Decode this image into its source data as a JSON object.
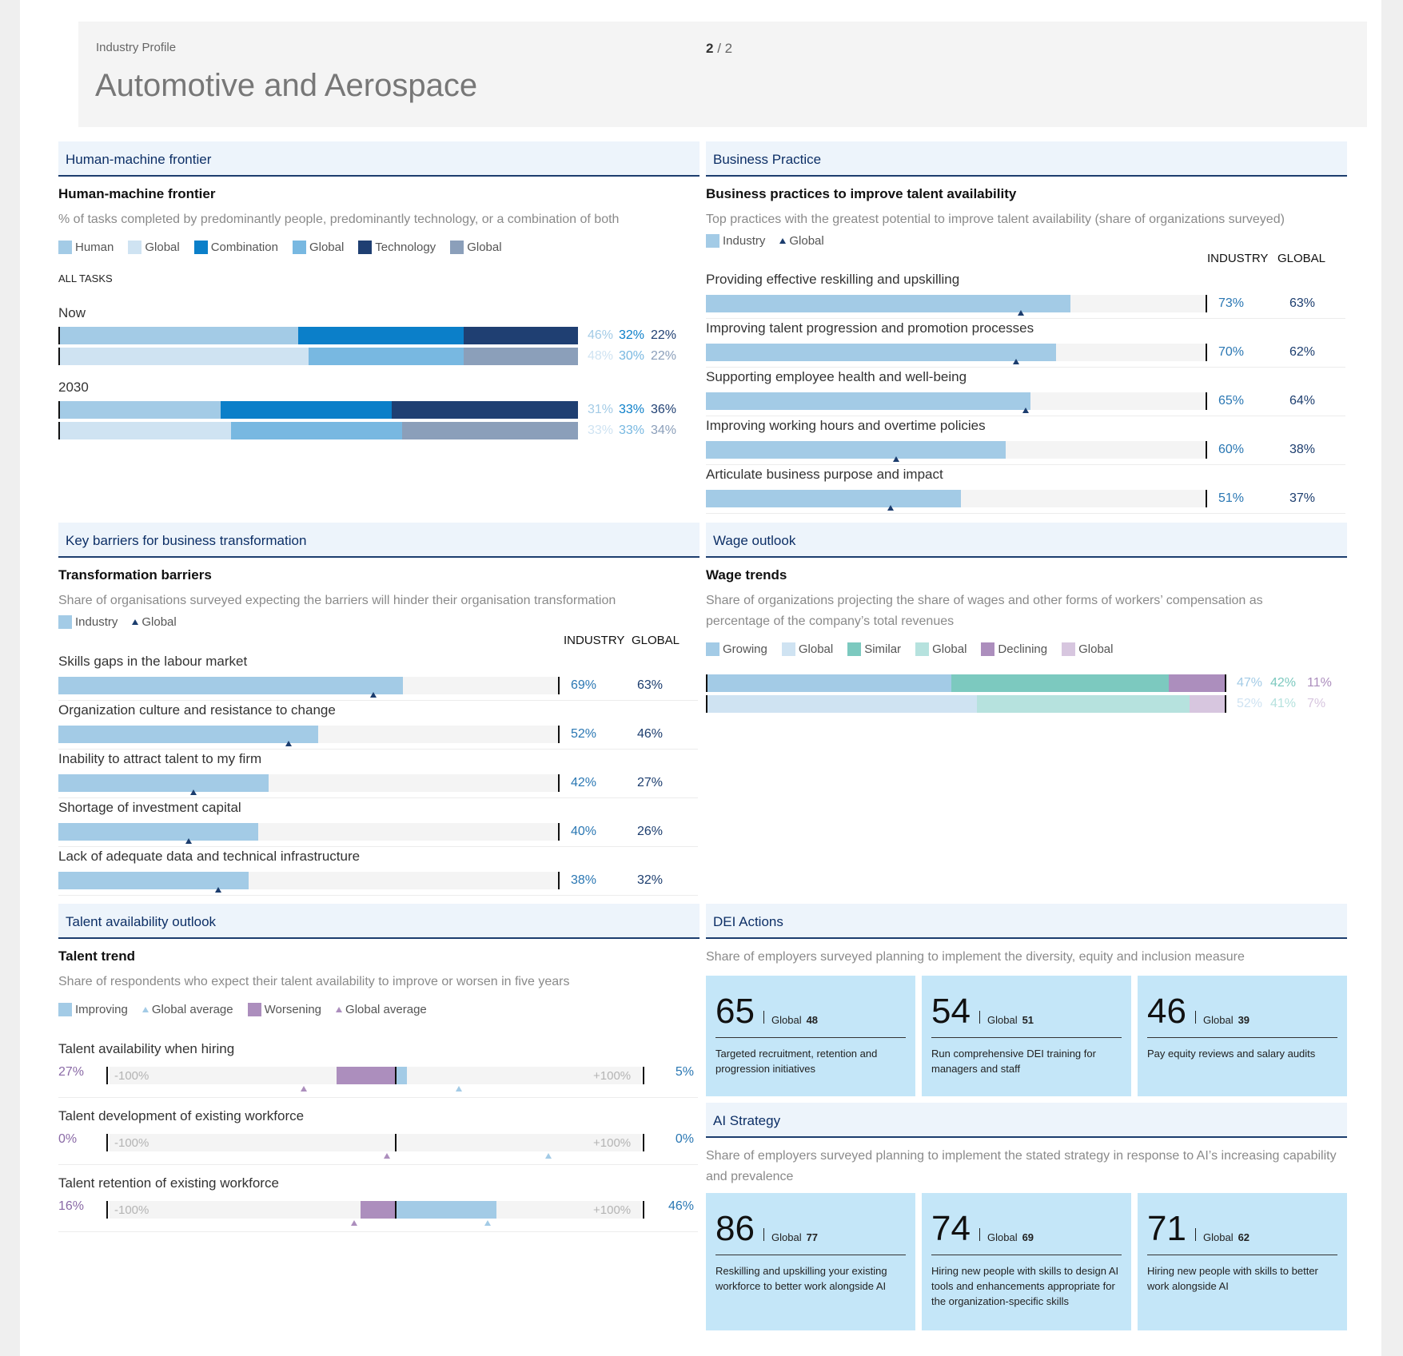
{
  "header": {
    "subtitle": "Industry Profile",
    "title": "Automotive and Aerospace",
    "page_current": "2",
    "page_sep": " / ",
    "page_total": "2"
  },
  "colors": {
    "human": "#a3cbe6",
    "human_global": "#cfe3f2",
    "combination": "#0b7fc9",
    "combination_global": "#78b8e1",
    "technology": "#1f3f72",
    "technology_global": "#8b9fba",
    "industry": "#a3cbe6",
    "growing": "#a3cbe6",
    "growing_global": "#cfe3f2",
    "similar": "#7cc9bf",
    "similar_global": "#b6e2de",
    "declining": "#ac8ebd",
    "declining_global": "#d7c6df",
    "improving": "#a3cbe6",
    "worsening": "#ac8ebd",
    "card": "#c4e6f8"
  },
  "hm": {
    "tab": "Human-machine frontier",
    "title": "Human-machine frontier",
    "desc": "% of tasks completed by predominantly people, predominantly technology, or a combination of both",
    "legend": [
      "Human",
      "Global",
      "Combination",
      "Global",
      "Technology",
      "Global"
    ],
    "all_tasks": "ALL TASKS",
    "groups": [
      {
        "label": "Now",
        "industry": [
          46,
          32,
          22
        ],
        "global": [
          48,
          30,
          22
        ],
        "industry_text": [
          "46%",
          "32%",
          "22%"
        ],
        "global_text": [
          "48%",
          "30%",
          "22%"
        ]
      },
      {
        "label": "2030",
        "industry": [
          31,
          33,
          36
        ],
        "global": [
          33,
          33,
          34
        ],
        "industry_text": [
          "31%",
          "33%",
          "36%"
        ],
        "global_text": [
          "33%",
          "33%",
          "34%"
        ]
      }
    ]
  },
  "bp": {
    "tab": "Business Practice",
    "title": "Business practices to improve talent availability",
    "desc": "Top practices with the greatest potential to improve talent availability (share of organizations surveyed)",
    "legend_industry": "Industry",
    "legend_global": "Global",
    "col_industry": "INDUSTRY",
    "col_global": "GLOBAL",
    "rows": [
      {
        "label": "Providing effective reskilling and upskilling",
        "industry": 73,
        "global": 63,
        "industry_text": "73%",
        "global_text": "63%"
      },
      {
        "label": "Improving talent progression and promotion processes",
        "industry": 70,
        "global": 62,
        "industry_text": "70%",
        "global_text": "62%"
      },
      {
        "label": "Supporting employee health and well-being",
        "industry": 65,
        "global": 64,
        "industry_text": "65%",
        "global_text": "64%"
      },
      {
        "label": "Improving working hours and overtime policies",
        "industry": 60,
        "global": 38,
        "industry_text": "60%",
        "global_text": "38%"
      },
      {
        "label": "Articulate business purpose and impact",
        "industry": 51,
        "global": 37,
        "industry_text": "51%",
        "global_text": "37%"
      }
    ]
  },
  "kb": {
    "tab": "Key barriers for business transformation",
    "title": "Transformation barriers",
    "desc": "Share of organisations surveyed expecting the barriers will hinder their organisation transformation",
    "legend_industry": "Industry",
    "legend_global": "Global",
    "col_industry": "INDUSTRY",
    "col_global": "GLOBAL",
    "rows": [
      {
        "label": "Skills gaps in the labour market",
        "industry": 69,
        "global": 63,
        "industry_text": "69%",
        "global_text": "63%"
      },
      {
        "label": "Organization culture and resistance to change",
        "industry": 52,
        "global": 46,
        "industry_text": "52%",
        "global_text": "46%"
      },
      {
        "label": "Inability to attract talent to my firm",
        "industry": 42,
        "global": 27,
        "industry_text": "42%",
        "global_text": "27%"
      },
      {
        "label": "Shortage of investment capital",
        "industry": 40,
        "global": 26,
        "industry_text": "40%",
        "global_text": "26%"
      },
      {
        "label": "Lack of adequate data and technical infrastructure",
        "industry": 38,
        "global": 32,
        "industry_text": "38%",
        "global_text": "32%"
      }
    ]
  },
  "wage": {
    "tab": "Wage outlook",
    "title": "Wage trends",
    "desc": "Share of organizations projecting the share of wages and other forms of workers’ compensation as percentage of the company’s total revenues",
    "legend": [
      "Growing",
      "Global",
      "Similar",
      "Global",
      "Declining",
      "Global"
    ],
    "industry": [
      47,
      42,
      11
    ],
    "global": [
      52,
      41,
      7
    ],
    "industry_text": [
      "47%",
      "42%",
      "11%"
    ],
    "global_text": [
      "52%",
      "41%",
      "7%"
    ]
  },
  "talent": {
    "tab": "Talent availability outlook",
    "title": "Talent trend",
    "desc": "Share of respondents who expect their talent availability to improve or worsen in five years",
    "legend": [
      "Improving",
      "Global average",
      "Worsening",
      "Global average"
    ],
    "axis_min": "-100%",
    "axis_max": "+100%",
    "rows": [
      {
        "label": "Talent availability when hiring",
        "worsening": 27,
        "improving": 5,
        "worsening_text": "27%",
        "improving_text": "5%",
        "global_worsening": 42,
        "global_improving": 29
      },
      {
        "label": "Talent development of existing workforce",
        "worsening": 0,
        "improving": 0,
        "worsening_text": "0%",
        "improving_text": "0%",
        "global_worsening": 4,
        "global_improving": 70
      },
      {
        "label": "Talent retention of existing workforce",
        "worsening": 16,
        "improving": 46,
        "worsening_text": "16%",
        "improving_text": "46%",
        "global_worsening": 19,
        "global_improving": 42
      }
    ]
  },
  "dei": {
    "tab": "DEI Actions",
    "desc": "Share of employers surveyed planning to implement the diversity, equity and inclusion measure",
    "global_label": "Global",
    "cards": [
      {
        "value": "65",
        "global": "48",
        "text": "Targeted recruitment, retention and progression initiatives"
      },
      {
        "value": "54",
        "global": "51",
        "text": "Run comprehensive DEI training for managers and staff"
      },
      {
        "value": "46",
        "global": "39",
        "text": "Pay equity reviews and salary audits"
      }
    ]
  },
  "ai": {
    "tab": "AI Strategy",
    "desc": "Share of employers surveyed planning to implement the stated strategy in response to AI’s increasing capability and prevalence",
    "global_label": "Global",
    "cards": [
      {
        "value": "86",
        "global": "77",
        "text": "Reskilling and upskilling your existing workforce to better work alongside AI"
      },
      {
        "value": "74",
        "global": "69",
        "text": "Hiring new people with skills to design AI tools and enhancements appropriate for the organization-specific skills"
      },
      {
        "value": "71",
        "global": "62",
        "text": "Hiring new people with skills to better work alongside AI"
      }
    ]
  }
}
